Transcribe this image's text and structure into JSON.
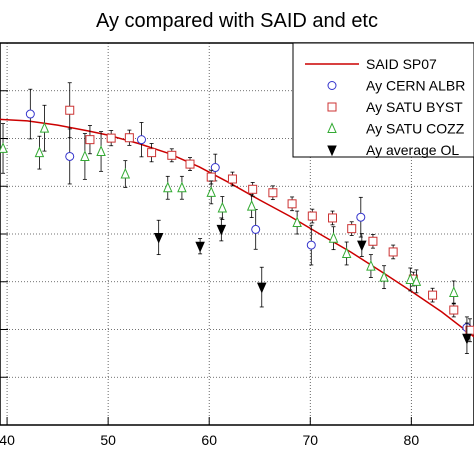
{
  "chart_data": {
    "type": "scatter",
    "title": "Ay compared with SAID and etc",
    "xlabel": "",
    "ylabel": "",
    "xlim": [
      39.3,
      86.2
    ],
    "ylim": [
      0,
      1
    ],
    "grid": true,
    "legend_position": "top-right",
    "x_ticks": [
      40,
      50,
      60,
      70,
      80
    ],
    "y_ticks": [],
    "series": [
      {
        "name": "SAID SP07",
        "kind": "line",
        "color": "#cc0000",
        "x": [
          39.3,
          42,
          45,
          48,
          50,
          53,
          56,
          59,
          62,
          65,
          68,
          71,
          74,
          77,
          80,
          83,
          86.2
        ],
        "y": [
          0.8,
          0.796,
          0.785,
          0.77,
          0.759,
          0.737,
          0.711,
          0.676,
          0.634,
          0.589,
          0.546,
          0.499,
          0.453,
          0.402,
          0.35,
          0.296,
          0.231
        ]
      },
      {
        "name": "Ay CERN ALBR",
        "marker": "circle",
        "color": "#3333cc",
        "points": [
          {
            "x": 42.3,
            "y": 0.814,
            "err": 0.065
          },
          {
            "x": 46.2,
            "y": 0.703,
            "err": 0.072
          },
          {
            "x": 53.3,
            "y": 0.747,
            "err": 0.045
          },
          {
            "x": 60.6,
            "y": 0.674,
            "err": 0.035
          },
          {
            "x": 64.6,
            "y": 0.512,
            "err": 0.052
          },
          {
            "x": 70.1,
            "y": 0.471,
            "err": 0.052
          },
          {
            "x": 75.0,
            "y": 0.544,
            "err": 0.052
          },
          {
            "x": 85.5,
            "y": 0.255,
            "err": 0.028
          }
        ]
      },
      {
        "name": "Ay SATU BYST",
        "marker": "square",
        "color": "#cc3333",
        "points": [
          {
            "x": 46.2,
            "y": 0.824,
            "err": 0.072
          },
          {
            "x": 48.2,
            "y": 0.747,
            "err": 0.037
          },
          {
            "x": 50.3,
            "y": 0.751,
            "err": 0.02
          },
          {
            "x": 52.1,
            "y": 0.752,
            "err": 0.02
          },
          {
            "x": 54.3,
            "y": 0.713,
            "err": 0.024
          },
          {
            "x": 56.3,
            "y": 0.706,
            "err": 0.017
          },
          {
            "x": 58.1,
            "y": 0.683,
            "err": 0.017
          },
          {
            "x": 60.2,
            "y": 0.649,
            "err": 0.018
          },
          {
            "x": 62.3,
            "y": 0.644,
            "err": 0.018
          },
          {
            "x": 64.3,
            "y": 0.617,
            "err": 0.018
          },
          {
            "x": 66.3,
            "y": 0.608,
            "err": 0.018
          },
          {
            "x": 68.2,
            "y": 0.579,
            "err": 0.018
          },
          {
            "x": 70.2,
            "y": 0.547,
            "err": 0.018
          },
          {
            "x": 72.2,
            "y": 0.542,
            "err": 0.018
          },
          {
            "x": 74.1,
            "y": 0.514,
            "err": 0.018
          },
          {
            "x": 76.2,
            "y": 0.481,
            "err": 0.018
          },
          {
            "x": 78.2,
            "y": 0.453,
            "err": 0.018
          },
          {
            "x": 80.2,
            "y": 0.382,
            "err": 0.018
          },
          {
            "x": 82.1,
            "y": 0.34,
            "err": 0.018
          },
          {
            "x": 84.2,
            "y": 0.301,
            "err": 0.018
          },
          {
            "x": 85.8,
            "y": 0.248,
            "err": 0.03
          }
        ]
      },
      {
        "name": "Ay SATU COZZ",
        "marker": "triangle",
        "color": "#33aa33",
        "points": [
          {
            "x": 39.6,
            "y": 0.724,
            "err": 0.065
          },
          {
            "x": 43.2,
            "y": 0.713,
            "err": 0.043
          },
          {
            "x": 43.7,
            "y": 0.777,
            "err": 0.06
          },
          {
            "x": 47.7,
            "y": 0.703,
            "err": 0.06
          },
          {
            "x": 49.3,
            "y": 0.716,
            "err": 0.052
          },
          {
            "x": 51.7,
            "y": 0.657,
            "err": 0.035
          },
          {
            "x": 55.9,
            "y": 0.621,
            "err": 0.03
          },
          {
            "x": 57.3,
            "y": 0.621,
            "err": 0.03
          },
          {
            "x": 60.2,
            "y": 0.609,
            "err": 0.03
          },
          {
            "x": 61.3,
            "y": 0.568,
            "err": 0.03
          },
          {
            "x": 64.2,
            "y": 0.573,
            "err": 0.03
          },
          {
            "x": 68.7,
            "y": 0.53,
            "err": 0.03
          },
          {
            "x": 72.3,
            "y": 0.489,
            "err": 0.03
          },
          {
            "x": 73.6,
            "y": 0.449,
            "err": 0.03
          },
          {
            "x": 76.0,
            "y": 0.416,
            "err": 0.03
          },
          {
            "x": 77.3,
            "y": 0.387,
            "err": 0.03
          },
          {
            "x": 79.9,
            "y": 0.381,
            "err": 0.03
          },
          {
            "x": 80.5,
            "y": 0.376,
            "err": 0.03
          },
          {
            "x": 84.2,
            "y": 0.347,
            "err": 0.03
          }
        ]
      },
      {
        "name": "Ay average OL",
        "marker": "triangle-down",
        "color": "#000000",
        "points": [
          {
            "x": 55.0,
            "y": 0.491,
            "err": 0.045
          },
          {
            "x": 59.1,
            "y": 0.468,
            "err": 0.02
          },
          {
            "x": 61.2,
            "y": 0.512,
            "err": 0.03
          },
          {
            "x": 65.2,
            "y": 0.361,
            "err": 0.052
          },
          {
            "x": 75.1,
            "y": 0.471,
            "err": 0.03
          },
          {
            "x": 85.5,
            "y": 0.227,
            "err": 0.04
          }
        ]
      }
    ],
    "legend_entries": [
      "SAID SP07",
      "Ay CERN ALBR",
      "Ay SATU BYST",
      "Ay SATU COZZ",
      "Ay average OL"
    ]
  }
}
